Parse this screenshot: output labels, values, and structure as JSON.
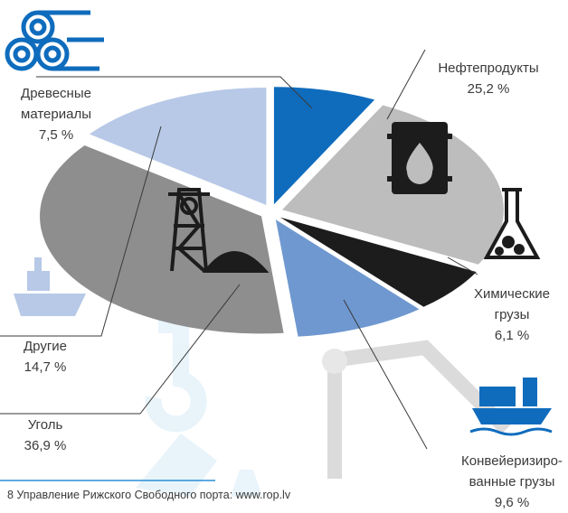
{
  "chart_data": {
    "type": "pie",
    "categories": [
      "Древесные\nматериалы",
      "Нефтепродукты",
      "Химические\nгрузы",
      "Конвейеризиро-\nванные грузы",
      "Уголь",
      "Другие"
    ],
    "values": [
      7.5,
      25.2,
      6.1,
      9.6,
      36.9,
      14.7
    ],
    "value_labels": [
      "7,5 %",
      "25,2 %",
      "6,1 %",
      "9,6 %",
      "36,9 %",
      "14,7 %"
    ],
    "colors": [
      "#0f6cbd",
      "#bdbdbd",
      "#1c1c1c",
      "#6f98d0",
      "#8e8e8e",
      "#b7c9e7"
    ],
    "footer": "8  Управление Рижского Свободного порта: www.rop.lv"
  }
}
